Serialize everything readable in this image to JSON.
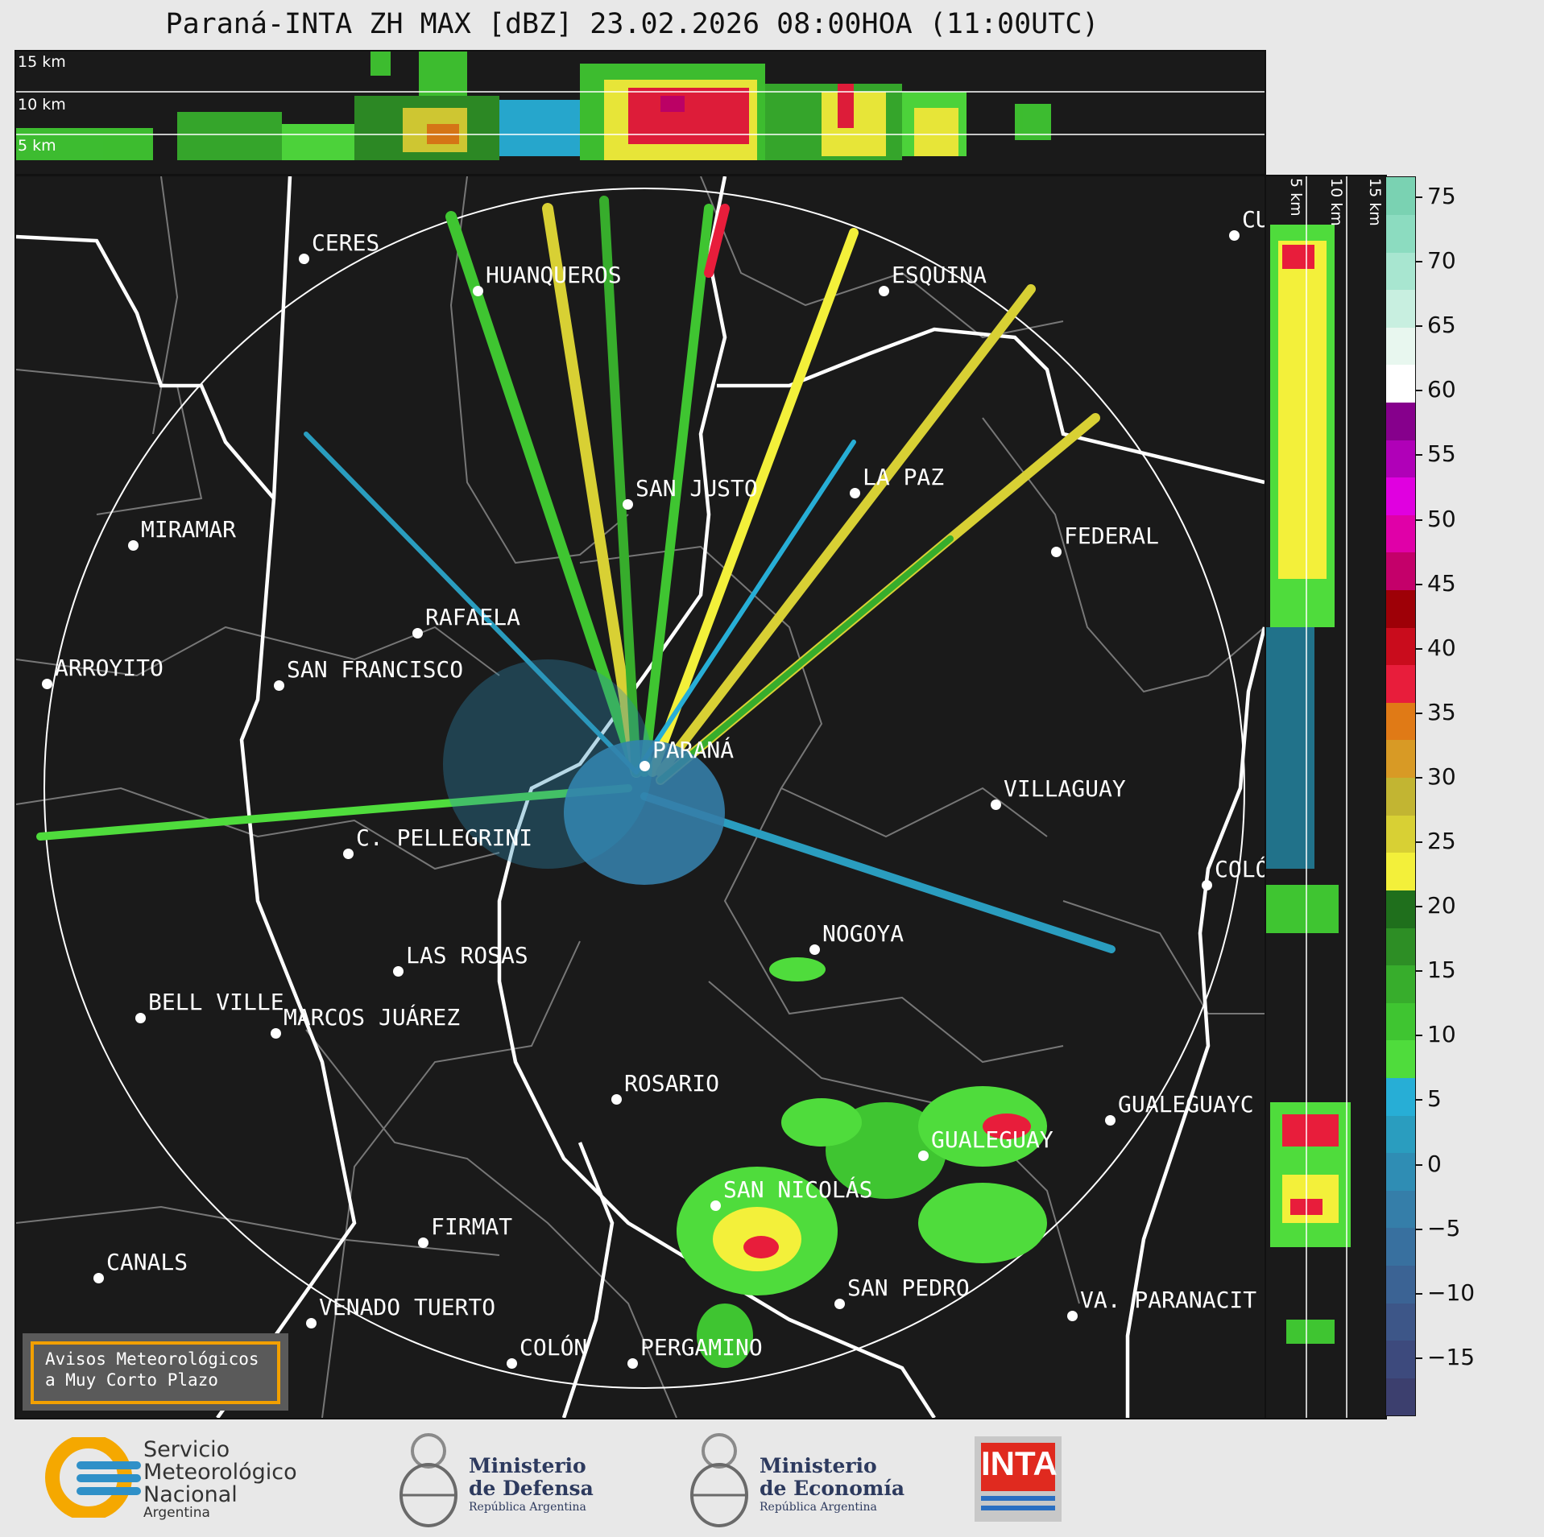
{
  "title": "Paraná-INTA ZH MAX [dBZ] 23.02.2026 08:00HOA (11:00UTC)",
  "height_labels": [
    "15 km",
    "10 km",
    "5 km"
  ],
  "cities": [
    {
      "name": "CERES"
    },
    {
      "name": "HUANQUEROS"
    },
    {
      "name": "ESQUINA"
    },
    {
      "name": "CU"
    },
    {
      "name": "SAN JUSTO"
    },
    {
      "name": "LA PAZ"
    },
    {
      "name": "MIRAMAR"
    },
    {
      "name": "FEDERAL"
    },
    {
      "name": "RAFAELA"
    },
    {
      "name": "ARROYITO"
    },
    {
      "name": "SAN FRANCISCO"
    },
    {
      "name": "PARANÁ"
    },
    {
      "name": "VILLAGUAY"
    },
    {
      "name": "C. PELLEGRINI"
    },
    {
      "name": "COLÓ"
    },
    {
      "name": "NOGOYA"
    },
    {
      "name": "LAS ROSAS"
    },
    {
      "name": "BELL VILLE"
    },
    {
      "name": "MARCOS JUÁREZ"
    },
    {
      "name": "ROSARIO"
    },
    {
      "name": "GUALEGUAYC"
    },
    {
      "name": "GUALEGUAY"
    },
    {
      "name": "SAN NICOLÁS"
    },
    {
      "name": "FIRMAT"
    },
    {
      "name": "CANALS"
    },
    {
      "name": "SAN PEDRO"
    },
    {
      "name": "VENADO TUERTO"
    },
    {
      "name": "VA. PARANACIT"
    },
    {
      "name": "COLÓN"
    },
    {
      "name": "PERGAMINO"
    }
  ],
  "colorbar": {
    "ticks": [
      "75",
      "70",
      "65",
      "60",
      "55",
      "50",
      "45",
      "40",
      "35",
      "30",
      "25",
      "20",
      "15",
      "10",
      "5",
      "0",
      "−5",
      "−10",
      "−15"
    ],
    "colors": [
      "#3c3f6e",
      "#3d4a7d",
      "#3d5688",
      "#3b6394",
      "#38709f",
      "#357ea9",
      "#2f8db4",
      "#2a9dbf",
      "#27aed6",
      "#4fdc3c",
      "#3fc531",
      "#37ad2c",
      "#2d8e25",
      "#1f6f1c",
      "#f3f03a",
      "#d8d034",
      "#c2b532",
      "#d89a25",
      "#e07a16",
      "#e81d3b",
      "#c90c1c",
      "#9e0007",
      "#c4006a",
      "#e000a8",
      "#e000e0",
      "#b000b8",
      "#86008c",
      "#ffffff",
      "#e8f7ef",
      "#c8efe0",
      "#a8e6d0",
      "#8cdcc0",
      "#7ad2b2"
    ]
  },
  "warning": {
    "line1": "Avisos Meteorológicos",
    "line2": "a Muy Corto Plazo"
  },
  "logos": {
    "smn": {
      "line1": "Servicio",
      "line2": "Meteorológico",
      "line3": "Nacional",
      "line4": "Argentina"
    },
    "defensa": {
      "line1": "Ministerio",
      "line2": "de Defensa",
      "line3": "República Argentina"
    },
    "economia": {
      "line1": "Ministerio",
      "line2": "de Economía",
      "line3": "República Argentina"
    },
    "inta": {
      "text": "INTA"
    }
  }
}
